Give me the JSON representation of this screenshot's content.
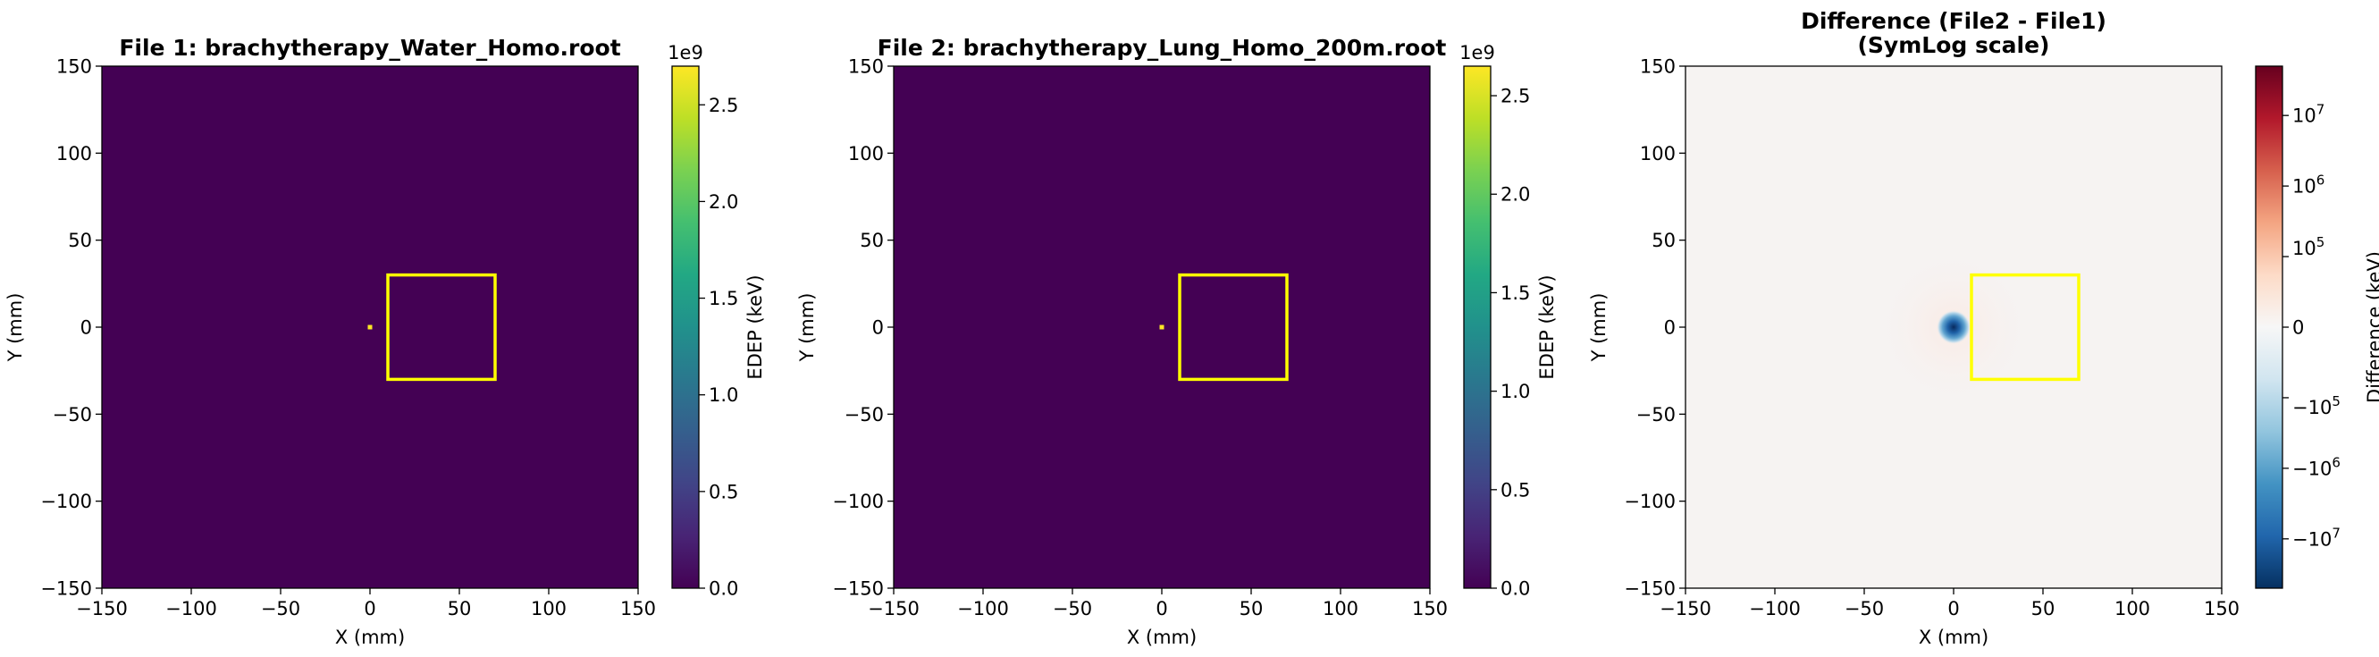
{
  "chart_data": [
    {
      "type": "heatmap",
      "title": "File 1: brachytherapy_Water_Homo.root",
      "xlabel": "X (mm)",
      "ylabel": "Y (mm)",
      "xlim": [
        -150,
        150
      ],
      "ylim": [
        -150,
        150
      ],
      "xticks": [
        -150,
        -100,
        -50,
        0,
        50,
        100,
        150
      ],
      "yticks": [
        -150,
        -100,
        -50,
        0,
        50,
        100,
        150
      ],
      "xtick_labels": [
        "−150",
        "−100",
        "−50",
        "0",
        "50",
        "100",
        "150"
      ],
      "ytick_labels": [
        "−150",
        "−100",
        "−50",
        "0",
        "50",
        "100",
        "150"
      ],
      "colormap": "viridis",
      "background_value": 0,
      "hotspot": {
        "x": 0,
        "y": 0,
        "value": 2700000000.0
      },
      "roi_rectangle": {
        "x_min": 10,
        "x_max": 70,
        "y_min": -30,
        "y_max": 30,
        "color": "#ffff00"
      },
      "colorbar": {
        "label": "EDEP (keV)",
        "range": [
          0,
          2.7
        ],
        "ticks": [
          0,
          0.5,
          1.0,
          1.5,
          2.0,
          2.5
        ],
        "tick_labels": [
          "0.0",
          "0.5",
          "1.0",
          "1.5",
          "2.0",
          "2.5"
        ],
        "multiplier": "1e9"
      }
    },
    {
      "type": "heatmap",
      "title": "File 2: brachytherapy_Lung_Homo_200m.root",
      "xlabel": "X (mm)",
      "ylabel": "Y (mm)",
      "xlim": [
        -150,
        150
      ],
      "ylim": [
        -150,
        150
      ],
      "xticks": [
        -150,
        -100,
        -50,
        0,
        50,
        100,
        150
      ],
      "yticks": [
        -150,
        -100,
        -50,
        0,
        50,
        100,
        150
      ],
      "xtick_labels": [
        "−150",
        "−100",
        "−50",
        "0",
        "50",
        "100",
        "150"
      ],
      "ytick_labels": [
        "−150",
        "−100",
        "−50",
        "0",
        "50",
        "100",
        "150"
      ],
      "colormap": "viridis",
      "background_value": 0,
      "hotspot": {
        "x": 0,
        "y": 0,
        "value": 2650000000.0
      },
      "roi_rectangle": {
        "x_min": 10,
        "x_max": 70,
        "y_min": -30,
        "y_max": 30,
        "color": "#ffff00"
      },
      "colorbar": {
        "label": "EDEP (keV)",
        "range": [
          0,
          2.65
        ],
        "ticks": [
          0,
          0.5,
          1.0,
          1.5,
          2.0,
          2.5
        ],
        "tick_labels": [
          "0.0",
          "0.5",
          "1.0",
          "1.5",
          "2.0",
          "2.5"
        ],
        "multiplier": "1e9"
      }
    },
    {
      "type": "heatmap",
      "title_lines": [
        "Difference (File2 - File1)",
        "(SymLog scale)"
      ],
      "xlabel": "X (mm)",
      "ylabel": "Y (mm)",
      "xlim": [
        -150,
        150
      ],
      "ylim": [
        -150,
        150
      ],
      "xticks": [
        -150,
        -100,
        -50,
        0,
        50,
        100,
        150
      ],
      "yticks": [
        -150,
        -100,
        -50,
        0,
        50,
        100,
        150
      ],
      "xtick_labels": [
        "−150",
        "−100",
        "−50",
        "0",
        "50",
        "100",
        "150"
      ],
      "ytick_labels": [
        "−150",
        "−100",
        "−50",
        "0",
        "50",
        "100",
        "150"
      ],
      "colormap": "RdBu_r",
      "scale": "symlog",
      "background_color": "#f6f3f2",
      "blob": {
        "x": 0,
        "y": 0,
        "value": -50000000.0
      },
      "roi_rectangle": {
        "x_min": 10,
        "x_max": 70,
        "y_min": -30,
        "y_max": 30,
        "color": "#ffff00"
      },
      "colorbar": {
        "label": "Difference (keV)",
        "range": [
          -50000000.0,
          50000000.0
        ],
        "ticks": [
          {
            "value": 10000000.0,
            "base": "10",
            "exp": "7"
          },
          {
            "value": 1000000.0,
            "base": "10",
            "exp": "6"
          },
          {
            "value": 100000.0,
            "base": "10",
            "exp": "5"
          },
          {
            "value": 0,
            "base": "0",
            "exp": ""
          },
          {
            "value": -100000.0,
            "base": "−10",
            "exp": "5"
          },
          {
            "value": -1000000.0,
            "base": "−10",
            "exp": "6"
          },
          {
            "value": -10000000.0,
            "base": "−10",
            "exp": "7"
          }
        ]
      }
    }
  ]
}
